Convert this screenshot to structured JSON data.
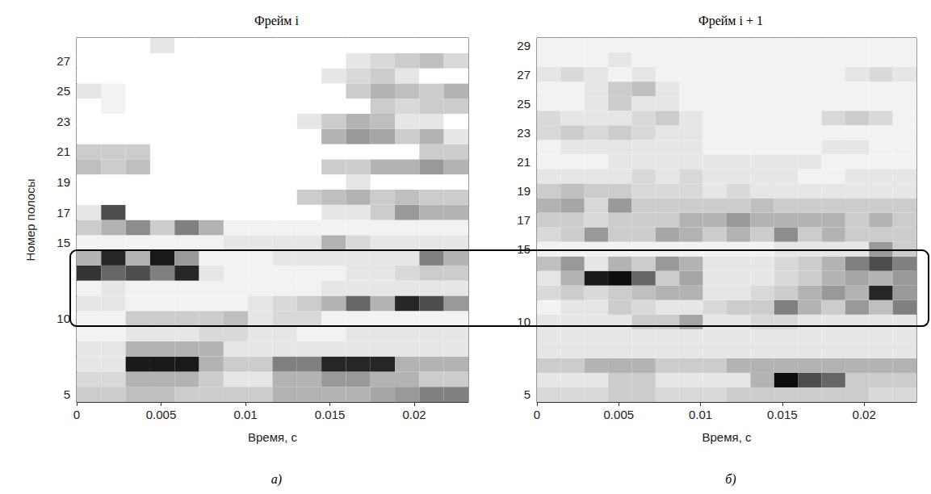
{
  "chart_data": [
    {
      "type": "heatmap",
      "title": "Фрейм i",
      "caption": "а)",
      "x_label": "Время, с",
      "y_label": "Номер полосы",
      "xlim": [
        0,
        0.0232
      ],
      "xticks": [
        0,
        0.005,
        0.01,
        0.015,
        0.02
      ],
      "categories": [
        "5",
        null,
        null,
        null,
        null,
        "10",
        null,
        null,
        null,
        null,
        "15",
        null,
        "17",
        null,
        "19",
        null,
        "21",
        null,
        "23",
        null,
        "25",
        null,
        "27",
        null
      ],
      "color_range": [
        0,
        1
      ],
      "cells": [
        [
          0.2,
          0.2,
          0.25,
          0.25,
          0.2,
          0.2,
          0.2,
          0.2,
          0.3,
          0.3,
          0.3,
          0.3,
          0.35,
          0.4,
          0.5,
          0.5
        ],
        [
          0.15,
          0.15,
          0.3,
          0.3,
          0.3,
          0.2,
          0.1,
          0.1,
          0.3,
          0.3,
          0.4,
          0.4,
          0.3,
          0.3,
          0.2,
          0.2
        ],
        [
          0.1,
          0.1,
          0.9,
          0.9,
          0.9,
          0.3,
          0.2,
          0.2,
          0.5,
          0.5,
          0.85,
          0.85,
          0.85,
          0.3,
          0.3,
          0.3
        ],
        [
          0.1,
          0.1,
          0.3,
          0.3,
          0.3,
          0.3,
          0.1,
          0.1,
          0.1,
          0.1,
          0.1,
          0.1,
          0.1,
          0.1,
          0.1,
          0.1
        ],
        [
          0.05,
          0.05,
          0.1,
          0.1,
          0.1,
          0.15,
          0.15,
          0.1,
          0.1,
          0.05,
          0.05,
          0.1,
          0.1,
          0.1,
          0.1,
          0.1
        ],
        [
          0.05,
          0.05,
          0.2,
          0.2,
          0.2,
          0.2,
          0.25,
          0.1,
          0.15,
          0.15,
          0.05,
          0.05,
          0.05,
          0.05,
          0.05,
          0.05
        ],
        [
          0.1,
          0.1,
          0.05,
          0.05,
          0.05,
          0.05,
          0.05,
          0.1,
          0.15,
          0.2,
          0.3,
          0.6,
          0.3,
          0.85,
          0.7,
          0.4
        ],
        [
          0.05,
          0.1,
          0.05,
          0.05,
          0.05,
          0.05,
          0.05,
          0.05,
          0.05,
          0.05,
          0.1,
          0.1,
          0.1,
          0.1,
          0.1,
          0.1
        ],
        [
          0.8,
          0.6,
          0.7,
          0.5,
          0.85,
          0.1,
          0.05,
          0.05,
          0.05,
          0.05,
          0.05,
          0.1,
          0.1,
          0.15,
          0.2,
          0.2
        ],
        [
          0.3,
          0.85,
          0.3,
          0.9,
          0.4,
          0.05,
          0.05,
          0.05,
          0.1,
          0.1,
          0.1,
          0.1,
          0.1,
          0.1,
          0.5,
          0.3
        ],
        [
          0.05,
          0.05,
          0.05,
          0.05,
          0.05,
          0.05,
          0.1,
          0.1,
          0.1,
          0.1,
          0.3,
          0.15,
          0.1,
          0.1,
          0.1,
          0.1
        ],
        [
          0.2,
          0.3,
          0.45,
          0.2,
          0.5,
          0.3,
          0.05,
          0.05,
          0.05,
          0.05,
          0.05,
          0.05,
          0.05,
          0.05,
          0.05,
          0.05
        ],
        [
          0.1,
          0.7,
          0,
          0,
          0,
          0,
          0,
          0,
          0,
          0,
          0.1,
          0.1,
          0.2,
          0.4,
          0.3,
          0.3
        ],
        [
          0,
          0,
          0,
          0,
          0,
          0,
          0,
          0,
          0,
          0.2,
          0.25,
          0.3,
          0.2,
          0.25,
          0.2,
          0.2
        ],
        [
          0,
          0,
          0,
          0,
          0,
          0,
          0,
          0,
          0,
          0,
          0,
          0.1,
          0,
          0,
          0,
          0
        ],
        [
          0.25,
          0.2,
          0.25,
          0,
          0,
          0,
          0,
          0,
          0,
          0,
          0.2,
          0.2,
          0.3,
          0.3,
          0.4,
          0.3
        ],
        [
          0.2,
          0.2,
          0.2,
          0,
          0,
          0,
          0,
          0,
          0,
          0,
          0,
          0,
          0,
          0,
          0.2,
          0.2
        ],
        [
          0,
          0,
          0,
          0,
          0,
          0,
          0,
          0,
          0,
          0,
          0.3,
          0.4,
          0.35,
          0.2,
          0.3,
          0.1
        ],
        [
          0,
          0,
          0,
          0,
          0,
          0,
          0,
          0,
          0,
          0.1,
          0.2,
          0.3,
          0.25,
          0.1,
          0.1,
          0
        ],
        [
          0,
          0.05,
          0,
          0,
          0,
          0,
          0,
          0,
          0,
          0,
          0,
          0,
          0.2,
          0.15,
          0.2,
          0.2
        ],
        [
          0.1,
          0.05,
          0,
          0,
          0,
          0,
          0,
          0,
          0,
          0,
          0,
          0.2,
          0.3,
          0.25,
          0.2,
          0.3
        ],
        [
          0,
          0,
          0,
          0,
          0,
          0,
          0,
          0,
          0,
          0,
          0.1,
          0.15,
          0.2,
          0.1,
          0,
          0
        ],
        [
          0,
          0,
          0,
          0,
          0,
          0,
          0,
          0,
          0,
          0,
          0,
          0.1,
          0.15,
          0.2,
          0.25,
          0.15
        ],
        [
          0,
          0,
          0,
          0.1,
          0,
          0,
          0,
          0,
          0,
          0,
          0,
          0,
          0,
          0,
          0,
          0
        ]
      ]
    },
    {
      "type": "heatmap",
      "title": "Фрейм i + 1",
      "caption": "б)",
      "x_label": "Время, с",
      "xlim": [
        0,
        0.0232
      ],
      "xticks": [
        0,
        0.005,
        0.01,
        0.015,
        0.02
      ],
      "categories": [
        "5",
        null,
        null,
        null,
        null,
        "10",
        null,
        null,
        null,
        null,
        "15",
        null,
        "17",
        null,
        "19",
        null,
        "21",
        null,
        "23",
        null,
        "25",
        null,
        "27",
        null,
        "29"
      ],
      "color_range": [
        0,
        1
      ],
      "cells": [
        [
          0.15,
          0.15,
          0.15,
          0.2,
          0.2,
          0.15,
          0.15,
          0.15,
          0.2,
          0.2,
          0.2,
          0.2,
          0.2,
          0.2,
          0.15,
          0.15
        ],
        [
          0.1,
          0.1,
          0.1,
          0.2,
          0.2,
          0.1,
          0.1,
          0.1,
          0.1,
          0.3,
          0.95,
          0.7,
          0.6,
          0.2,
          0.2,
          0.2
        ],
        [
          0.2,
          0.2,
          0.3,
          0.3,
          0.3,
          0.2,
          0.2,
          0.2,
          0.3,
          0.3,
          0.3,
          0.3,
          0.3,
          0.3,
          0.3,
          0.3
        ],
        [
          0.1,
          0.1,
          0.1,
          0.1,
          0.1,
          0.1,
          0.1,
          0.1,
          0.1,
          0.1,
          0.1,
          0.1,
          0.1,
          0.1,
          0.1,
          0.1
        ],
        [
          0.1,
          0.1,
          0.1,
          0.1,
          0.1,
          0.1,
          0.1,
          0.1,
          0.1,
          0.1,
          0.1,
          0.1,
          0.1,
          0.1,
          0.1,
          0.1
        ],
        [
          0.1,
          0.1,
          0.1,
          0.1,
          0.2,
          0.2,
          0.35,
          0.1,
          0.1,
          0.15,
          0.15,
          0.1,
          0.1,
          0.1,
          0.1,
          0.1
        ],
        [
          0.05,
          0.1,
          0.1,
          0.2,
          0.15,
          0.1,
          0.1,
          0.15,
          0.2,
          0.2,
          0.5,
          0.3,
          0.2,
          0.4,
          0.25,
          0.5
        ],
        [
          0.15,
          0.2,
          0.15,
          0.2,
          0.25,
          0.3,
          0.3,
          0.1,
          0.1,
          0.15,
          0.2,
          0.3,
          0.4,
          0.3,
          0.85,
          0.4
        ],
        [
          0.1,
          0.3,
          0.9,
          0.95,
          0.6,
          0.2,
          0.35,
          0.1,
          0.1,
          0.1,
          0.15,
          0.2,
          0.3,
          0.35,
          0.3,
          0.4
        ],
        [
          0.25,
          0.4,
          0.1,
          0.3,
          0.2,
          0.4,
          0.3,
          0.1,
          0.1,
          0.1,
          0.15,
          0.2,
          0.3,
          0.5,
          0.7,
          0.5
        ],
        [
          0.05,
          0.05,
          0.05,
          0.05,
          0.05,
          0.05,
          0.05,
          0.05,
          0.05,
          0.05,
          0.1,
          0.1,
          0.1,
          0.1,
          0.4,
          0.2
        ],
        [
          0.15,
          0.2,
          0.4,
          0.2,
          0.2,
          0.35,
          0.3,
          0.2,
          0.3,
          0.2,
          0.45,
          0.2,
          0.3,
          0.2,
          0.2,
          0.2
        ],
        [
          0.2,
          0.2,
          0.15,
          0.2,
          0.2,
          0.2,
          0.3,
          0.3,
          0.4,
          0.3,
          0.3,
          0.3,
          0.3,
          0.2,
          0.3,
          0.2
        ],
        [
          0.3,
          0.35,
          0.15,
          0.4,
          0.2,
          0.2,
          0.2,
          0.2,
          0.2,
          0.25,
          0.2,
          0.2,
          0.2,
          0.2,
          0.2,
          0.2
        ],
        [
          0.2,
          0.25,
          0.2,
          0.2,
          0.15,
          0.15,
          0.15,
          0.1,
          0.15,
          0.1,
          0.1,
          0.1,
          0.1,
          0.1,
          0.1,
          0.1
        ],
        [
          0.1,
          0.1,
          0.1,
          0.1,
          0.15,
          0.1,
          0.15,
          0.1,
          0.1,
          0.1,
          0.1,
          0.05,
          0.05,
          0.1,
          0.1,
          0.1
        ],
        [
          0.05,
          0.05,
          0.05,
          0.1,
          0.1,
          0.1,
          0.1,
          0.1,
          0.1,
          0.1,
          0.1,
          0.1,
          0.05,
          0.05,
          0.05,
          0.05
        ],
        [
          0.05,
          0.1,
          0.1,
          0.1,
          0.1,
          0.1,
          0.1,
          0.05,
          0.05,
          0.05,
          0.05,
          0.05,
          0.1,
          0.1,
          0.05,
          0.05
        ],
        [
          0.15,
          0.2,
          0.15,
          0.2,
          0.15,
          0.1,
          0.1,
          0.05,
          0.05,
          0.05,
          0.05,
          0.05,
          0.05,
          0.05,
          0.05,
          0.05
        ],
        [
          0.15,
          0.1,
          0.1,
          0.1,
          0.15,
          0.2,
          0.1,
          0.05,
          0.05,
          0.05,
          0.05,
          0.05,
          0.15,
          0.2,
          0.15,
          0.05
        ],
        [
          0.05,
          0.05,
          0.1,
          0.2,
          0.1,
          0.1,
          0.05,
          0.05,
          0.05,
          0.05,
          0.05,
          0.05,
          0.05,
          0.05,
          0.05,
          0.05
        ],
        [
          0.05,
          0.05,
          0.1,
          0.2,
          0.25,
          0.1,
          0.05,
          0.05,
          0.05,
          0.05,
          0.05,
          0.05,
          0.05,
          0.05,
          0.05,
          0.05
        ],
        [
          0.1,
          0.15,
          0.1,
          0.05,
          0.1,
          0.05,
          0.05,
          0.05,
          0.05,
          0.05,
          0.05,
          0.05,
          0.05,
          0.1,
          0.15,
          0.1
        ],
        [
          0.05,
          0.05,
          0.05,
          0.1,
          0.05,
          0.05,
          0.05,
          0.05,
          0.05,
          0.05,
          0.05,
          0.05,
          0.05,
          0.05,
          0.05,
          0.05
        ],
        [
          0.05,
          0.05,
          0.05,
          0.05,
          0.05,
          0.05,
          0.05,
          0.05,
          0.05,
          0.05,
          0.05,
          0.05,
          0.05,
          0.05,
          0.05,
          0.05
        ]
      ]
    }
  ]
}
